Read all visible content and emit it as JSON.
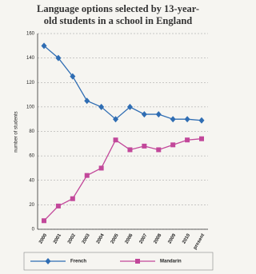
{
  "chart_data": {
    "type": "line",
    "title": "Language options selected by 13-year-old students in a school in England",
    "y_label": "number of students",
    "categories": [
      "2000",
      "2001",
      "2002",
      "2003",
      "2004",
      "2005",
      "2006",
      "2007",
      "2008",
      "2009",
      "2010",
      "present"
    ],
    "series": [
      {
        "name": "French",
        "color": "#2f6db3",
        "marker": "diamond",
        "values": [
          150,
          140,
          125,
          105,
          100,
          90,
          100,
          94,
          94,
          90,
          90,
          89
        ]
      },
      {
        "name": "Mandarin",
        "color": "#c2479a",
        "marker": "square",
        "values": [
          7,
          19,
          25,
          44,
          50,
          73,
          65,
          68,
          65,
          69,
          73,
          74
        ]
      }
    ],
    "ylim": [
      0,
      160
    ],
    "yticks": [
      0,
      20,
      40,
      60,
      80,
      100,
      120,
      140,
      160
    ],
    "grid": true,
    "legend": "bottom"
  }
}
